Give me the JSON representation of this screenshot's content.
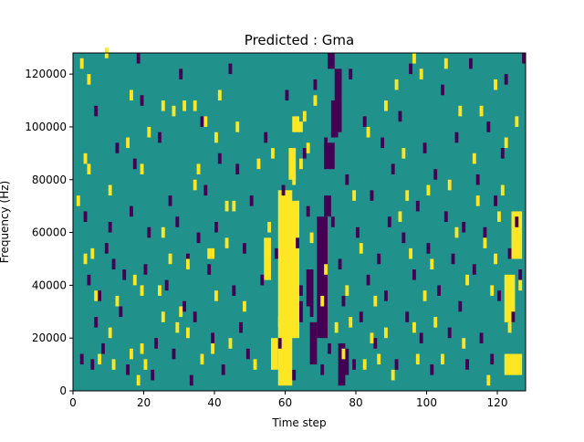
{
  "chart_data": {
    "type": "heatmap",
    "title": "Predicted : Gma",
    "xlabel": "Time step",
    "ylabel": "Frequency (Hz)",
    "xlim": [
      0,
      128
    ],
    "ylim": [
      0,
      128000
    ],
    "x_ticks": [
      0,
      20,
      40,
      60,
      80,
      100,
      120
    ],
    "y_ticks": [
      0,
      20000,
      40000,
      60000,
      80000,
      100000,
      120000
    ],
    "x_tick_labels": [
      "0",
      "20",
      "40",
      "60",
      "80",
      "100",
      "120"
    ],
    "y_tick_labels": [
      "0",
      "20000",
      "40000",
      "60000",
      "80000",
      "100000",
      "120000"
    ],
    "grid": false,
    "colors": {
      "background": "#21918c",
      "high": "#fde725",
      "low": "#440154"
    },
    "frequency_bin_hz": 4000,
    "high_cells": [
      [
        1,
        70000
      ],
      [
        2,
        122000
      ],
      [
        3,
        86000
      ],
      [
        3,
        48000
      ],
      [
        4,
        116000
      ],
      [
        4,
        82000
      ],
      [
        5,
        50000
      ],
      [
        6,
        34000
      ],
      [
        7,
        10000
      ],
      [
        9,
        126000
      ],
      [
        10,
        20000
      ],
      [
        10,
        74000
      ],
      [
        11,
        8000
      ],
      [
        12,
        32000
      ],
      [
        15,
        92000
      ],
      [
        16,
        110000
      ],
      [
        16,
        12000
      ],
      [
        17,
        40000
      ],
      [
        18,
        2000
      ],
      [
        19,
        14000
      ],
      [
        19,
        36000
      ],
      [
        19,
        82000
      ],
      [
        20,
        8000
      ],
      [
        21,
        96000
      ],
      [
        24,
        36000
      ],
      [
        25,
        106000
      ],
      [
        25,
        58000
      ],
      [
        25,
        26000
      ],
      [
        27,
        48000
      ],
      [
        28,
        104000
      ],
      [
        29,
        22000
      ],
      [
        30,
        28000
      ],
      [
        31,
        106000
      ],
      [
        32,
        20000
      ],
      [
        32,
        46000
      ],
      [
        34,
        106000
      ],
      [
        34,
        76000
      ],
      [
        35,
        82000
      ],
      [
        36,
        10000
      ],
      [
        37,
        100000
      ],
      [
        38,
        50000
      ],
      [
        39,
        14000
      ],
      [
        39,
        50000
      ],
      [
        40,
        94000
      ],
      [
        40,
        34000
      ],
      [
        41,
        110000
      ],
      [
        43,
        54000
      ],
      [
        43,
        68000
      ],
      [
        44,
        16000
      ],
      [
        45,
        68000
      ],
      [
        46,
        98000
      ],
      [
        48,
        30000
      ],
      [
        51,
        8000
      ],
      [
        52,
        84000
      ],
      [
        55,
        60000
      ],
      [
        56,
        88000
      ],
      [
        58,
        24000
      ],
      [
        59,
        56000
      ],
      [
        60,
        28000
      ],
      [
        60,
        40000
      ],
      [
        61,
        50000
      ],
      [
        61,
        62000
      ],
      [
        62,
        78000
      ],
      [
        63,
        68000
      ],
      [
        64,
        84000
      ],
      [
        64,
        98000
      ],
      [
        65,
        102000
      ],
      [
        66,
        90000
      ],
      [
        67,
        56000
      ],
      [
        68,
        108000
      ],
      [
        70,
        32000
      ],
      [
        71,
        44000
      ],
      [
        74,
        22000
      ],
      [
        76,
        12000
      ],
      [
        77,
        36000
      ],
      [
        78,
        24000
      ],
      [
        79,
        72000
      ],
      [
        81,
        52000
      ],
      [
        82,
        8000
      ],
      [
        83,
        96000
      ],
      [
        84,
        18000
      ],
      [
        85,
        32000
      ],
      [
        86,
        10000
      ],
      [
        88,
        20000
      ],
      [
        88,
        106000
      ],
      [
        90,
        4000
      ],
      [
        91,
        114000
      ],
      [
        92,
        64000
      ],
      [
        93,
        88000
      ],
      [
        94,
        72000
      ],
      [
        95,
        50000
      ],
      [
        96,
        22000
      ],
      [
        96,
        124000
      ],
      [
        97,
        10000
      ],
      [
        98,
        118000
      ],
      [
        99,
        34000
      ],
      [
        100,
        74000
      ],
      [
        101,
        46000
      ],
      [
        102,
        24000
      ],
      [
        104,
        10000
      ],
      [
        105,
        122000
      ],
      [
        106,
        76000
      ],
      [
        108,
        58000
      ],
      [
        109,
        104000
      ],
      [
        110,
        16000
      ],
      [
        111,
        40000
      ],
      [
        113,
        86000
      ],
      [
        114,
        70000
      ],
      [
        115,
        104000
      ],
      [
        116,
        54000
      ],
      [
        117,
        2000
      ],
      [
        118,
        36000
      ],
      [
        119,
        48000
      ],
      [
        119,
        114000
      ],
      [
        120,
        64000
      ],
      [
        121,
        74000
      ],
      [
        122,
        92000
      ],
      [
        123,
        22000
      ],
      [
        124,
        56000
      ],
      [
        125,
        100000
      ],
      [
        126,
        38000
      ]
    ],
    "low_cells": [
      [
        2,
        10000
      ],
      [
        3,
        64000
      ],
      [
        4,
        40000
      ],
      [
        5,
        8000
      ],
      [
        6,
        24000
      ],
      [
        6,
        104000
      ],
      [
        7,
        34000
      ],
      [
        8,
        14000
      ],
      [
        9,
        52000
      ],
      [
        10,
        60000
      ],
      [
        11,
        46000
      ],
      [
        12,
        90000
      ],
      [
        13,
        28000
      ],
      [
        14,
        42000
      ],
      [
        15,
        6000
      ],
      [
        16,
        66000
      ],
      [
        17,
        84000
      ],
      [
        18,
        124000
      ],
      [
        19,
        108000
      ],
      [
        20,
        44000
      ],
      [
        21,
        58000
      ],
      [
        22,
        4000
      ],
      [
        23,
        16000
      ],
      [
        24,
        94000
      ],
      [
        26,
        38000
      ],
      [
        27,
        70000
      ],
      [
        28,
        12000
      ],
      [
        29,
        62000
      ],
      [
        30,
        118000
      ],
      [
        31,
        30000
      ],
      [
        32,
        48000
      ],
      [
        33,
        2000
      ],
      [
        34,
        26000
      ],
      [
        35,
        56000
      ],
      [
        36,
        100000
      ],
      [
        37,
        74000
      ],
      [
        38,
        44000
      ],
      [
        39,
        18000
      ],
      [
        40,
        60000
      ],
      [
        41,
        86000
      ],
      [
        42,
        6000
      ],
      [
        44,
        120000
      ],
      [
        45,
        36000
      ],
      [
        46,
        82000
      ],
      [
        47,
        22000
      ],
      [
        48,
        52000
      ],
      [
        49,
        12000
      ],
      [
        50,
        70000
      ],
      [
        53,
        40000
      ],
      [
        54,
        94000
      ],
      [
        57,
        50000
      ],
      [
        58,
        16000
      ],
      [
        59,
        74000
      ],
      [
        60,
        110000
      ],
      [
        62,
        4000
      ],
      [
        63,
        54000
      ],
      [
        64,
        36000
      ],
      [
        65,
        88000
      ],
      [
        66,
        66000
      ],
      [
        67,
        28000
      ],
      [
        68,
        114000
      ],
      [
        70,
        6000
      ],
      [
        71,
        92000
      ],
      [
        72,
        14000
      ],
      [
        73,
        62000
      ],
      [
        74,
        104000
      ],
      [
        75,
        46000
      ],
      [
        76,
        32000
      ],
      [
        77,
        78000
      ],
      [
        78,
        118000
      ],
      [
        79,
        8000
      ],
      [
        80,
        58000
      ],
      [
        81,
        26000
      ],
      [
        82,
        100000
      ],
      [
        83,
        40000
      ],
      [
        84,
        72000
      ],
      [
        85,
        16000
      ],
      [
        86,
        48000
      ],
      [
        87,
        92000
      ],
      [
        88,
        34000
      ],
      [
        89,
        62000
      ],
      [
        90,
        82000
      ],
      [
        91,
        8000
      ],
      [
        92,
        102000
      ],
      [
        93,
        56000
      ],
      [
        94,
        26000
      ],
      [
        95,
        120000
      ],
      [
        96,
        42000
      ],
      [
        97,
        68000
      ],
      [
        98,
        18000
      ],
      [
        99,
        90000
      ],
      [
        100,
        52000
      ],
      [
        101,
        6000
      ],
      [
        102,
        80000
      ],
      [
        103,
        36000
      ],
      [
        104,
        112000
      ],
      [
        105,
        64000
      ],
      [
        106,
        20000
      ],
      [
        107,
        48000
      ],
      [
        108,
        94000
      ],
      [
        109,
        30000
      ],
      [
        110,
        60000
      ],
      [
        111,
        8000
      ],
      [
        112,
        122000
      ],
      [
        113,
        44000
      ],
      [
        114,
        78000
      ],
      [
        115,
        18000
      ],
      [
        116,
        58000
      ],
      [
        117,
        98000
      ],
      [
        118,
        10000
      ],
      [
        119,
        70000
      ],
      [
        120,
        34000
      ],
      [
        121,
        88000
      ],
      [
        122,
        116000
      ],
      [
        123,
        50000
      ],
      [
        124,
        26000
      ],
      [
        125,
        62000
      ],
      [
        126,
        42000
      ],
      [
        127,
        124000
      ]
    ],
    "high_blocks": [
      [
        58,
        62,
        2000,
        76000
      ],
      [
        60,
        64,
        20000,
        72000
      ],
      [
        61,
        63,
        80000,
        92000
      ],
      [
        62,
        64,
        98000,
        104000
      ],
      [
        122,
        127,
        6000,
        14000
      ],
      [
        122,
        125,
        26000,
        44000
      ],
      [
        124,
        127,
        50000,
        68000
      ],
      [
        54,
        56,
        42000,
        58000
      ],
      [
        56,
        58,
        8000,
        20000
      ]
    ],
    "low_blocks": [
      [
        69,
        72,
        20000,
        66000
      ],
      [
        71,
        73,
        66000,
        74000
      ],
      [
        71,
        74,
        84000,
        94000
      ],
      [
        73,
        75,
        96000,
        110000
      ],
      [
        72,
        74,
        122000,
        128000
      ],
      [
        75,
        77,
        2000,
        18000
      ],
      [
        76,
        78,
        6000,
        16000
      ],
      [
        74,
        76,
        98000,
        122000
      ],
      [
        66,
        68,
        32000,
        46000
      ],
      [
        67,
        69,
        10000,
        26000
      ],
      [
        63,
        65,
        26000,
        34000
      ]
    ]
  }
}
